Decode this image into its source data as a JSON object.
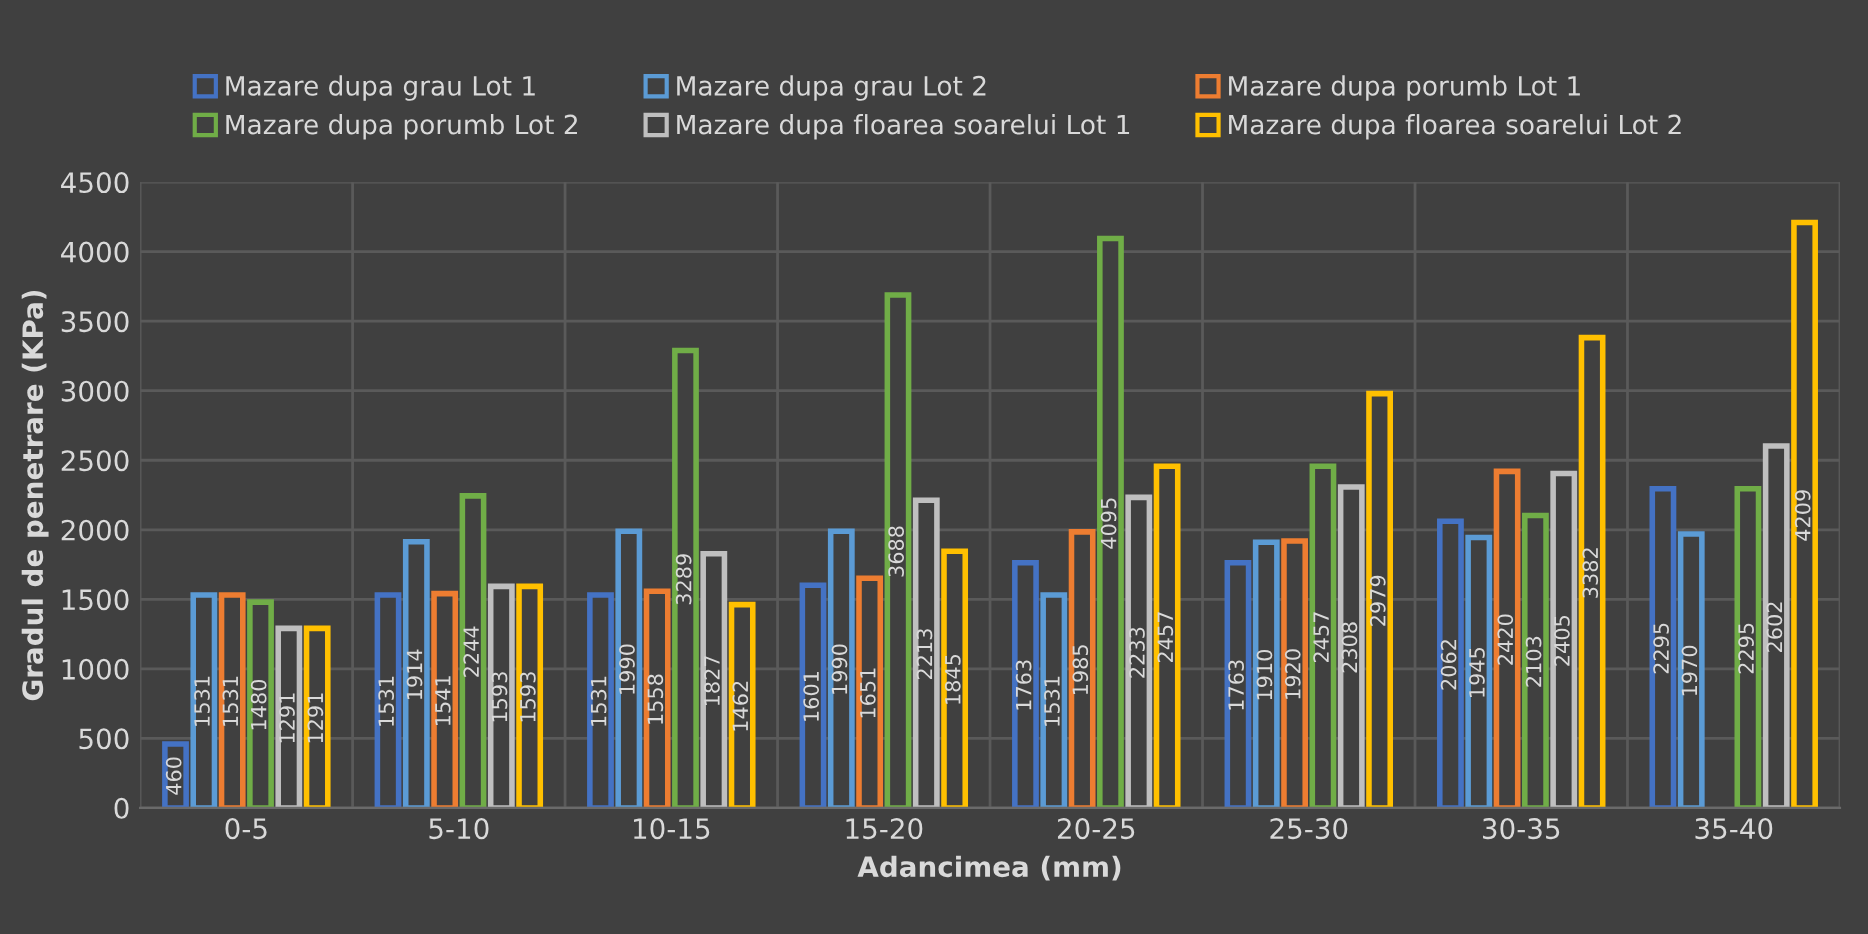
{
  "chart_data": {
    "type": "bar",
    "xlabel": "Adancimea (mm)",
    "ylabel": "Gradul de penetrare (KPa)",
    "categories": [
      "0-5",
      "5-10",
      "10-15",
      "15-20",
      "20-25",
      "25-30",
      "30-35",
      "35-40"
    ],
    "series": [
      {
        "name": "Mazare dupa grau Lot 1",
        "color": "#4472c4",
        "values": [
          460,
          1531,
          1531,
          1601,
          1763,
          1763,
          2062,
          2295
        ]
      },
      {
        "name": "Mazare dupa grau Lot 2",
        "color": "#5b9bd5",
        "values": [
          1531,
          1914,
          1990,
          1990,
          1531,
          1910,
          1945,
          1970
        ]
      },
      {
        "name": "Mazare dupa porumb Lot 1",
        "color": "#ed7d31",
        "values": [
          1531,
          1541,
          1558,
          1651,
          1985,
          1920,
          2420,
          null
        ]
      },
      {
        "name": "Mazare dupa porumb Lot 2",
        "color": "#70ad47",
        "values": [
          1480,
          2244,
          3289,
          3688,
          4095,
          2457,
          2103,
          2295
        ]
      },
      {
        "name": "Mazare dupa floarea soarelui Lot 1",
        "color": "#bfbfbf",
        "values": [
          1291,
          1593,
          1827,
          2213,
          2233,
          2308,
          2405,
          2602
        ]
      },
      {
        "name": "Mazare dupa floarea soarelui Lot 2",
        "color": "#ffc000",
        "values": [
          1291,
          1593,
          1462,
          1845,
          2457,
          2979,
          3382,
          4209
        ]
      }
    ],
    "ylim": [
      0,
      4500
    ],
    "yticks": [
      0,
      500,
      1000,
      1500,
      2000,
      2500,
      3000,
      3500,
      4000,
      4500
    ],
    "grid": true,
    "legend": "top",
    "data_labels": true
  }
}
